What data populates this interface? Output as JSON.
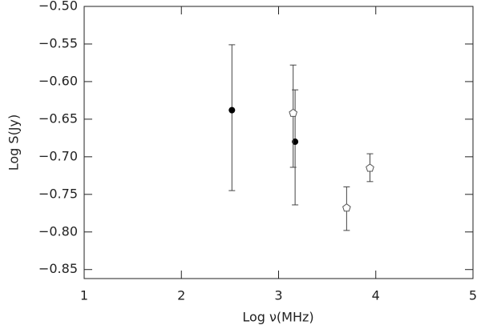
{
  "chart_data": {
    "type": "scatter",
    "x_label": "Log ν(MHz)",
    "y_label": "Log S(Jy)",
    "xlim": [
      1,
      5
    ],
    "ylim": [
      -0.862,
      -0.5
    ],
    "xticks": [
      1,
      2,
      3,
      4,
      5
    ],
    "yticks": [
      {
        "value": -0.5,
        "label": "−0.50"
      },
      {
        "value": -0.55,
        "label": "−0.55"
      },
      {
        "value": -0.6,
        "label": "−0.60"
      },
      {
        "value": -0.65,
        "label": "−0.65"
      },
      {
        "value": -0.7,
        "label": "−0.70"
      },
      {
        "value": -0.75,
        "label": "−0.75"
      },
      {
        "value": -0.8,
        "label": "−0.80"
      },
      {
        "value": -0.85,
        "label": "−0.85"
      }
    ],
    "series": [
      {
        "marker": "filled-circle",
        "color": "#000000",
        "x": [
          2.52,
          3.17
        ],
        "y": [
          -0.638,
          -0.68
        ],
        "yerr_plus": [
          0.087,
          0.069
        ],
        "yerr_minus": [
          0.107,
          0.084
        ]
      },
      {
        "marker": "open-pentagon",
        "color": "#555555",
        "x": [
          3.15,
          3.7,
          3.94
        ],
        "y": [
          -0.642,
          -0.768,
          -0.715
        ],
        "yerr_plus": [
          0.064,
          0.028,
          0.019
        ],
        "yerr_minus": [
          0.072,
          0.03,
          0.018
        ]
      }
    ]
  }
}
